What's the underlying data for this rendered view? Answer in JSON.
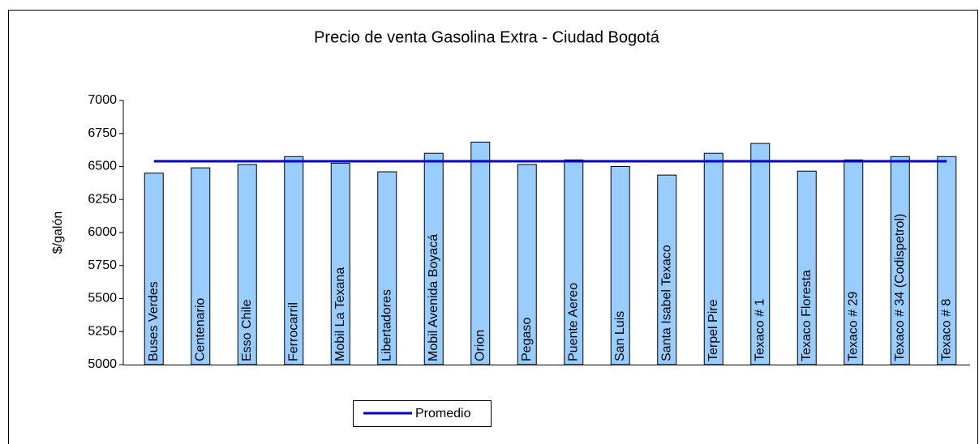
{
  "chart_data": {
    "type": "bar",
    "title": "Precio de venta Gasolina Extra - Ciudad Bogotá",
    "y_label": "$/galón",
    "categories": [
      "Buses Verdes",
      "Centenario",
      "Esso Chile",
      "Ferrocarril",
      "Mobil La Texana",
      "Libertadores",
      "Mobil Avenida Boyacá",
      "Orion",
      "Pegaso",
      "Puente Aereo",
      "San Luis",
      "Santa Isabel Texaco",
      "Terpel Pire",
      "Texaco # 1",
      "Texaco Floresta",
      "Texaco # 29",
      "Texaco # 34 (Codispetrol)",
      "Texaco # 8"
    ],
    "values": [
      6450,
      6490,
      6515,
      6575,
      6525,
      6460,
      6600,
      6685,
      6515,
      6550,
      6500,
      6435,
      6600,
      6675,
      6465,
      6550,
      6575,
      6575
    ],
    "color": "#99ccff",
    "series": [
      {
        "name": "Promedio",
        "color": "#0000cc",
        "values": [
          6540,
          6540,
          6540,
          6540,
          6540,
          6540,
          6540,
          6540,
          6540,
          6540,
          6540,
          6540,
          6540,
          6540,
          6540,
          6540,
          6540,
          6540
        ]
      }
    ],
    "ylim": [
      5000,
      7000
    ],
    "yticks": [
      5000,
      5250,
      5500,
      5750,
      6000,
      6250,
      6500,
      6750,
      7000
    ]
  }
}
